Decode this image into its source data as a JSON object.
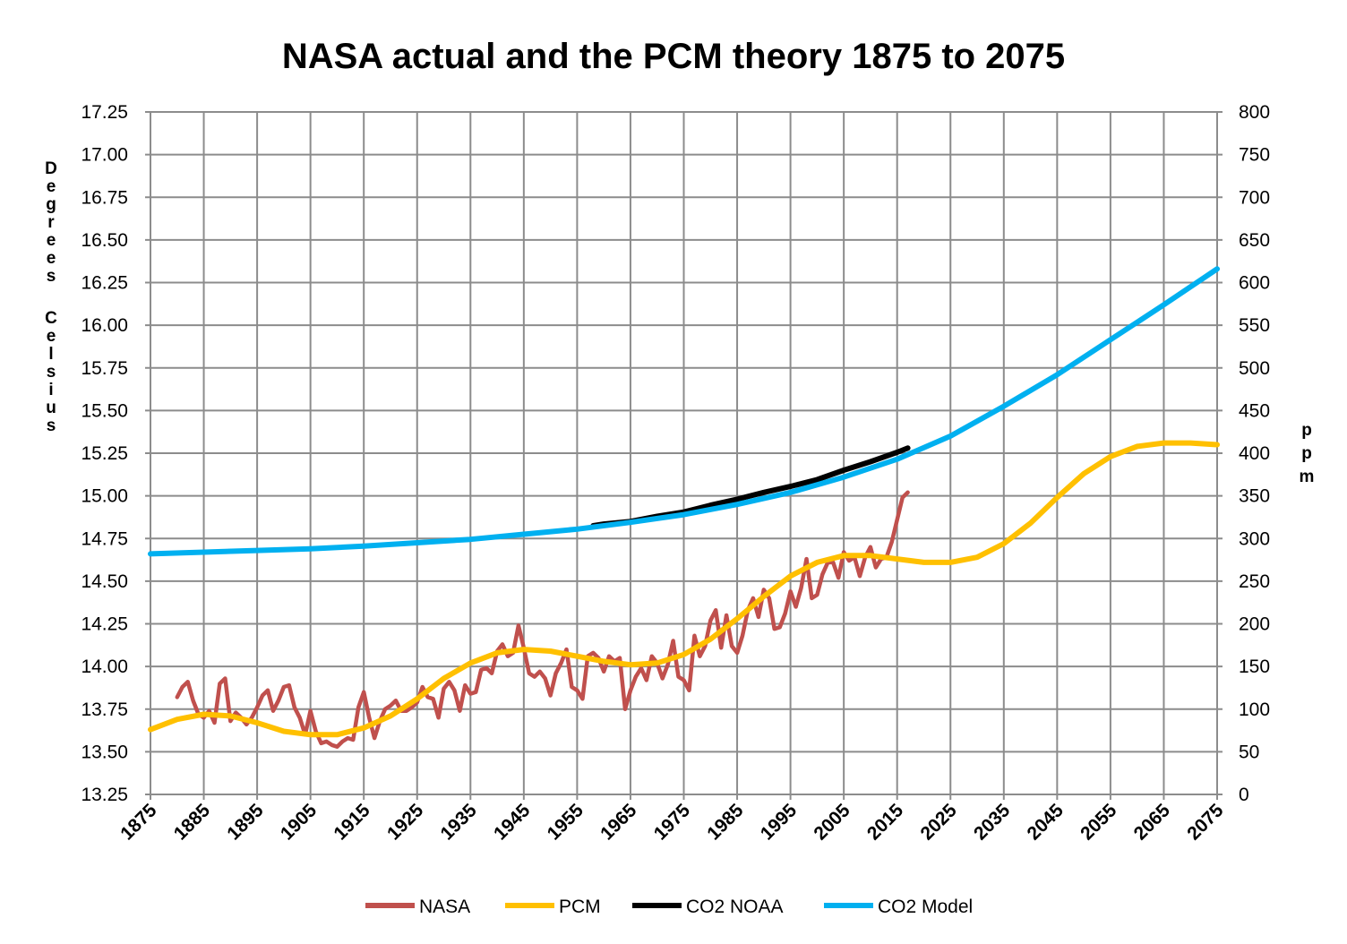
{
  "chart_data": {
    "type": "line",
    "title": "NASA actual and the PCM theory 1875 to 2075",
    "ylabel": "Degrees Celsius",
    "y2label": "ppm",
    "xlim": [
      1875,
      2075
    ],
    "ylim": [
      13.25,
      17.25
    ],
    "y2lim": [
      0,
      800
    ],
    "x_ticks": [
      "1875",
      "1885",
      "1895",
      "1905",
      "1915",
      "1925",
      "1935",
      "1945",
      "1955",
      "1965",
      "1975",
      "1985",
      "1995",
      "2005",
      "2015",
      "2025",
      "2035",
      "2045",
      "2055",
      "2065",
      "2075"
    ],
    "y_ticks": [
      "17.25",
      "17.00",
      "16.75",
      "16.50",
      "16.25",
      "16.00",
      "15.75",
      "15.50",
      "15.25",
      "15.00",
      "14.75",
      "14.50",
      "14.25",
      "14.00",
      "13.75",
      "13.50",
      "13.25"
    ],
    "y2_ticks": [
      "800",
      "750",
      "700",
      "650",
      "600",
      "550",
      "500",
      "450",
      "400",
      "350",
      "300",
      "250",
      "200",
      "150",
      "100",
      "50",
      "0"
    ],
    "grid": true,
    "legend_position": "bottom",
    "series": [
      {
        "name": "NASA",
        "axis": "left",
        "color": "#C0504D",
        "x": [
          1880,
          1881,
          1882,
          1883,
          1884,
          1885,
          1886,
          1887,
          1888,
          1889,
          1890,
          1891,
          1892,
          1893,
          1894,
          1895,
          1896,
          1897,
          1898,
          1899,
          1900,
          1901,
          1902,
          1903,
          1904,
          1905,
          1906,
          1907,
          1908,
          1909,
          1910,
          1911,
          1912,
          1913,
          1914,
          1915,
          1916,
          1917,
          1918,
          1919,
          1920,
          1921,
          1922,
          1923,
          1924,
          1925,
          1926,
          1927,
          1928,
          1929,
          1930,
          1931,
          1932,
          1933,
          1934,
          1935,
          1936,
          1937,
          1938,
          1939,
          1940,
          1941,
          1942,
          1943,
          1944,
          1945,
          1946,
          1947,
          1948,
          1949,
          1950,
          1951,
          1952,
          1953,
          1954,
          1955,
          1956,
          1957,
          1958,
          1959,
          1960,
          1961,
          1962,
          1963,
          1964,
          1965,
          1966,
          1967,
          1968,
          1969,
          1970,
          1971,
          1972,
          1973,
          1974,
          1975,
          1976,
          1977,
          1978,
          1979,
          1980,
          1981,
          1982,
          1983,
          1984,
          1985,
          1986,
          1987,
          1988,
          1989,
          1990,
          1991,
          1992,
          1993,
          1994,
          1995,
          1996,
          1997,
          1998,
          1999,
          2000,
          2001,
          2002,
          2003,
          2004,
          2005,
          2006,
          2007,
          2008,
          2009,
          2010,
          2011,
          2012,
          2013,
          2014,
          2015,
          2016,
          2017
        ],
        "y": [
          13.82,
          13.88,
          13.91,
          13.8,
          13.72,
          13.7,
          13.74,
          13.67,
          13.9,
          13.93,
          13.68,
          13.73,
          13.7,
          13.66,
          13.7,
          13.76,
          13.83,
          13.86,
          13.74,
          13.8,
          13.88,
          13.89,
          13.76,
          13.7,
          13.6,
          13.74,
          13.62,
          13.55,
          13.56,
          13.54,
          13.53,
          13.56,
          13.58,
          13.57,
          13.76,
          13.85,
          13.7,
          13.58,
          13.68,
          13.75,
          13.77,
          13.8,
          13.74,
          13.74,
          13.76,
          13.79,
          13.88,
          13.82,
          13.81,
          13.7,
          13.87,
          13.91,
          13.86,
          13.74,
          13.89,
          13.84,
          13.85,
          13.98,
          13.99,
          13.96,
          14.09,
          14.13,
          14.06,
          14.08,
          14.24,
          14.11,
          13.96,
          13.94,
          13.97,
          13.93,
          13.83,
          13.96,
          14.02,
          14.1,
          13.88,
          13.86,
          13.81,
          14.06,
          14.08,
          14.05,
          13.97,
          14.06,
          14.03,
          14.05,
          13.75,
          13.86,
          13.94,
          13.99,
          13.92,
          14.06,
          14.02,
          13.93,
          14.01,
          14.15,
          13.94,
          13.92,
          13.86,
          14.18,
          14.06,
          14.12,
          14.27,
          14.33,
          14.11,
          14.3,
          14.12,
          14.08,
          14.18,
          14.33,
          14.4,
          14.29,
          14.45,
          14.4,
          14.22,
          14.23,
          14.31,
          14.44,
          14.35,
          14.46,
          14.63,
          14.4,
          14.42,
          14.54,
          14.61,
          14.61,
          14.52,
          14.67,
          14.62,
          14.64,
          14.53,
          14.64,
          14.7,
          14.58,
          14.63,
          14.64,
          14.73,
          14.86,
          14.99,
          15.02
        ]
      },
      {
        "name": "PCM",
        "axis": "left",
        "color": "#FFC000",
        "x": [
          1875,
          1880,
          1885,
          1890,
          1895,
          1900,
          1905,
          1910,
          1915,
          1920,
          1925,
          1930,
          1935,
          1940,
          1945,
          1950,
          1955,
          1960,
          1965,
          1970,
          1975,
          1980,
          1985,
          1990,
          1995,
          2000,
          2005,
          2010,
          2015,
          2020,
          2025,
          2030,
          2035,
          2040,
          2045,
          2050,
          2055,
          2060,
          2065,
          2070,
          2075
        ],
        "y": [
          13.63,
          13.69,
          13.72,
          13.71,
          13.67,
          13.62,
          13.6,
          13.6,
          13.64,
          13.71,
          13.81,
          13.93,
          14.02,
          14.08,
          14.1,
          14.09,
          14.06,
          14.03,
          14.01,
          14.02,
          14.07,
          14.16,
          14.28,
          14.41,
          14.53,
          14.61,
          14.65,
          14.65,
          14.63,
          14.61,
          14.61,
          14.64,
          14.72,
          14.84,
          14.99,
          15.13,
          15.23,
          15.29,
          15.31,
          15.31,
          15.3
        ]
      },
      {
        "name": "CO2 NOAA",
        "axis": "right",
        "color": "#000000",
        "x": [
          1958,
          1960,
          1965,
          1970,
          1975,
          1980,
          1985,
          1990,
          1995,
          2000,
          2005,
          2010,
          2015,
          2017
        ],
        "y": [
          315,
          317,
          320,
          326,
          331,
          339,
          346,
          354,
          361,
          369,
          380,
          390,
          401,
          406
        ]
      },
      {
        "name": "CO2 Model",
        "axis": "right",
        "color": "#00B0F0",
        "x": [
          1875,
          1885,
          1895,
          1905,
          1915,
          1925,
          1935,
          1945,
          1955,
          1965,
          1975,
          1985,
          1995,
          2005,
          2015,
          2025,
          2035,
          2045,
          2055,
          2065,
          2075
        ],
        "y": [
          282,
          284,
          286,
          288,
          291,
          295,
          299,
          305,
          311,
          319,
          328,
          340,
          354,
          372,
          393,
          420,
          455,
          492,
          533,
          574,
          616
        ]
      }
    ]
  }
}
